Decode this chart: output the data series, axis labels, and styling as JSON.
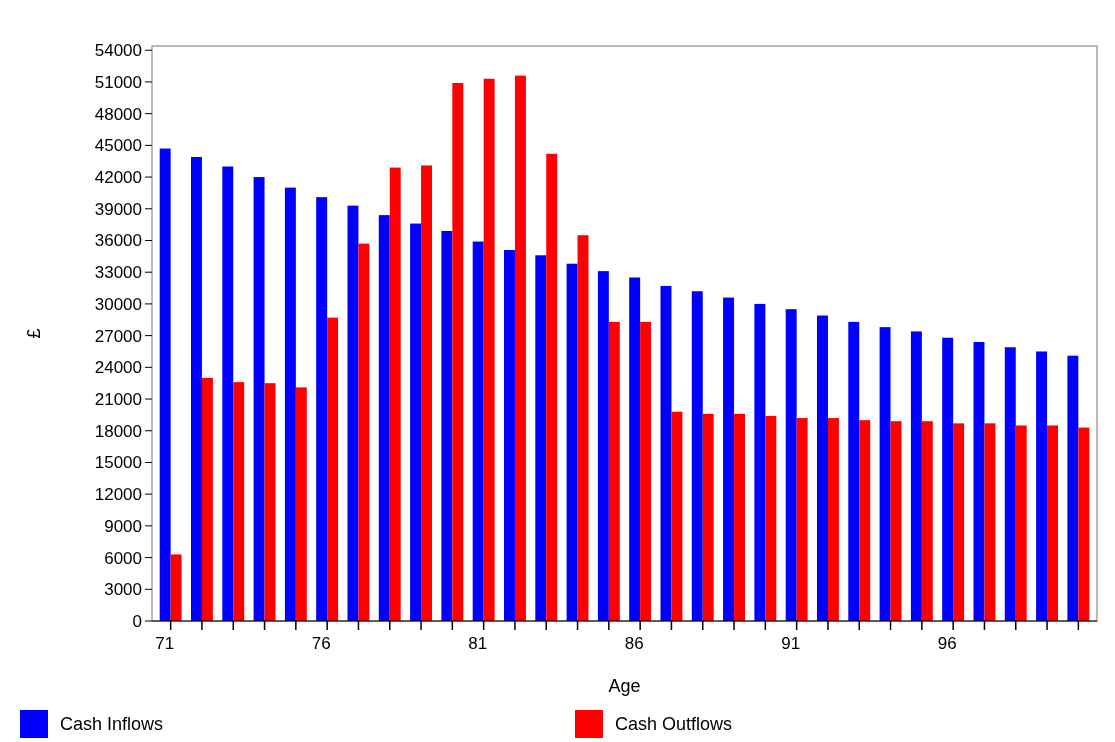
{
  "chart_data": {
    "type": "bar",
    "xlabel": "Age",
    "ylabel": "£",
    "categories": [
      "71",
      null,
      null,
      null,
      null,
      "76",
      null,
      null,
      null,
      null,
      "81",
      null,
      null,
      null,
      null,
      "86",
      null,
      null,
      null,
      null,
      "91",
      null,
      null,
      null,
      null,
      "96",
      null,
      null,
      null,
      null
    ],
    "series": [
      {
        "name": "Cash Inflows",
        "color": "#0000ff",
        "values": [
          44700,
          43900,
          43000,
          42000,
          41000,
          40100,
          39300,
          38400,
          37600,
          36900,
          35900,
          35100,
          34600,
          33800,
          33100,
          32500,
          31700,
          31200,
          30600,
          30000,
          29500,
          28900,
          28300,
          27800,
          27400,
          26800,
          26400,
          25900,
          25500,
          25100
        ]
      },
      {
        "name": "Cash Outflows",
        "color": "#ff0000",
        "values": [
          6300,
          23000,
          22600,
          22500,
          22100,
          28700,
          35700,
          42900,
          43100,
          50900,
          51300,
          51600,
          44200,
          36500,
          28300,
          28300,
          19800,
          19600,
          19600,
          19400,
          19200,
          19200,
          19000,
          18900,
          18900,
          18700,
          18700,
          18500,
          18500,
          18300
        ]
      }
    ],
    "ylim": [
      0,
      54400
    ],
    "yticks": [
      0,
      3000,
      6000,
      9000,
      12000,
      15000,
      18000,
      21000,
      24000,
      27000,
      30000,
      33000,
      36000,
      39000,
      42000,
      45000,
      48000,
      51000,
      54000
    ],
    "grid": false,
    "legend": "bottom"
  }
}
